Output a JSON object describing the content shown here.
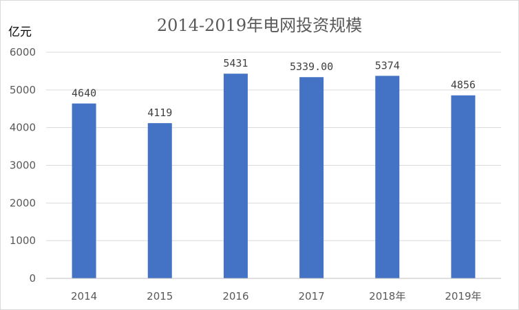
{
  "chart_data": {
    "type": "bar",
    "title": "2014-2019年电网投资规模",
    "ylabel": "亿元",
    "xlabel": "",
    "categories": [
      "2014",
      "2015",
      "2016",
      "2017",
      "2018年",
      "2019年"
    ],
    "values": [
      4640,
      4119,
      5431,
      5339,
      5374,
      4856
    ],
    "data_labels": [
      "4640",
      "4119",
      "5431",
      "5339.00",
      "5374",
      "4856"
    ],
    "yticks": [
      "0",
      "1000",
      "2000",
      "3000",
      "4000",
      "5000",
      "6000"
    ],
    "ylim": [
      0,
      6000
    ],
    "grid": true,
    "legend": "none",
    "bar_color": "#4472c4"
  }
}
